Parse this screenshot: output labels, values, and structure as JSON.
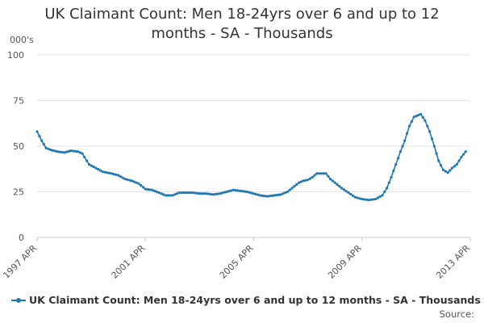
{
  "chart_data": {
    "type": "line",
    "title_lines": [
      "UK Claimant Count: Men 18-24yrs over 6 and up to 12",
      "months - SA - Thousands"
    ],
    "ylabel": "000's",
    "ylim": [
      0,
      100
    ],
    "yticks": [
      "0",
      "25",
      "50",
      "75",
      "100"
    ],
    "xticks": [
      "1997 APR",
      "2001 APR",
      "2005 APR",
      "2009 APR",
      "2013 APR"
    ],
    "xrange": [
      1997.25,
      2013.25
    ],
    "grid": "horizontal",
    "legend_position": "bottom-left",
    "line_color": "#1f78b4",
    "series": [
      {
        "name": "UK Claimant Count: Men 18-24yrs over 6 and up to 12 months - SA - Thousands",
        "points": [
          [
            1997.25,
            58
          ],
          [
            1997.42,
            53
          ],
          [
            1997.58,
            49
          ],
          [
            1997.75,
            48
          ],
          [
            1998.0,
            47
          ],
          [
            1998.25,
            46.5
          ],
          [
            1998.5,
            47.5
          ],
          [
            1998.75,
            47
          ],
          [
            1998.92,
            46
          ],
          [
            1999.0,
            44
          ],
          [
            1999.17,
            40
          ],
          [
            1999.42,
            38
          ],
          [
            1999.67,
            36
          ],
          [
            2000.0,
            35
          ],
          [
            2000.25,
            34
          ],
          [
            2000.5,
            32
          ],
          [
            2000.75,
            31
          ],
          [
            2001.0,
            29.5
          ],
          [
            2001.25,
            26.5
          ],
          [
            2001.5,
            26
          ],
          [
            2001.75,
            24.5
          ],
          [
            2002.0,
            23
          ],
          [
            2002.25,
            23
          ],
          [
            2002.5,
            24.5
          ],
          [
            2002.75,
            24.5
          ],
          [
            2003.0,
            24.5
          ],
          [
            2003.25,
            24
          ],
          [
            2003.5,
            24
          ],
          [
            2003.75,
            23.5
          ],
          [
            2004.0,
            24
          ],
          [
            2004.25,
            25
          ],
          [
            2004.5,
            26
          ],
          [
            2004.75,
            25.5
          ],
          [
            2005.0,
            25
          ],
          [
            2005.25,
            24
          ],
          [
            2005.5,
            23
          ],
          [
            2005.75,
            22.5
          ],
          [
            2006.0,
            23
          ],
          [
            2006.25,
            23.5
          ],
          [
            2006.5,
            25
          ],
          [
            2006.75,
            28
          ],
          [
            2006.92,
            30
          ],
          [
            2007.08,
            31
          ],
          [
            2007.25,
            31.5
          ],
          [
            2007.42,
            33
          ],
          [
            2007.58,
            35
          ],
          [
            2007.75,
            35
          ],
          [
            2007.92,
            35
          ],
          [
            2008.08,
            32
          ],
          [
            2008.25,
            30
          ],
          [
            2008.5,
            27
          ],
          [
            2008.75,
            24.5
          ],
          [
            2009.0,
            22
          ],
          [
            2009.25,
            21
          ],
          [
            2009.5,
            20.5
          ],
          [
            2009.75,
            21
          ],
          [
            2010.0,
            23
          ],
          [
            2010.17,
            27
          ],
          [
            2010.33,
            33
          ],
          [
            2010.5,
            40
          ],
          [
            2010.67,
            47
          ],
          [
            2010.83,
            53
          ],
          [
            2011.0,
            61
          ],
          [
            2011.17,
            66
          ],
          [
            2011.33,
            67
          ],
          [
            2011.42,
            67.5
          ],
          [
            2011.58,
            64
          ],
          [
            2011.75,
            58
          ],
          [
            2011.92,
            50
          ],
          [
            2012.08,
            42
          ],
          [
            2012.25,
            37
          ],
          [
            2012.42,
            35.5
          ],
          [
            2012.58,
            38
          ],
          [
            2012.75,
            40
          ],
          [
            2012.92,
            44
          ],
          [
            2013.08,
            47
          ]
        ]
      }
    ],
    "source_label": "Source:"
  }
}
